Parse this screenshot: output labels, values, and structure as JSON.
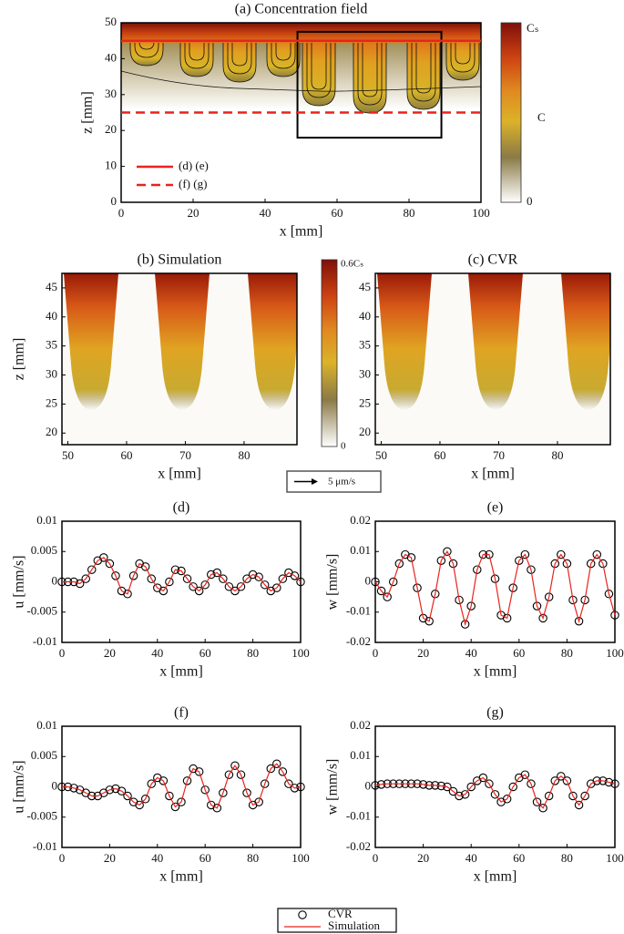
{
  "chart_data": [
    {
      "type": "contour",
      "title": "(a) Concentration field",
      "xlabel": "x [mm]",
      "ylabel": "z [mm]",
      "xlim": [
        0,
        100
      ],
      "ylim": [
        0,
        50
      ],
      "xticks": [
        0,
        20,
        40,
        60,
        80,
        100
      ],
      "yticks": [
        0,
        10,
        20,
        30,
        40,
        50
      ],
      "colorbar_labels": [
        "Cₛ",
        "C",
        "0"
      ],
      "lines": [
        {
          "label": "(d) (e)",
          "y": 45,
          "color": "#e8231d",
          "style": "solid"
        },
        {
          "label": "(f) (g)",
          "y": 25,
          "color": "#e8231d",
          "style": "dashed"
        }
      ]
    },
    {
      "type": "field",
      "title": "(b) Simulation",
      "xlabel": "x [mm]",
      "ylabel": "z [mm]",
      "xlim": [
        49,
        89
      ],
      "ylim": [
        18,
        47.5
      ],
      "xticks": [
        50,
        60,
        70,
        80
      ],
      "yticks": [
        20,
        25,
        30,
        35,
        40,
        45
      ],
      "colorbar_labels": [
        "0.6Cₛ",
        "0"
      ],
      "arrow_scale_label": "5 μm/s"
    },
    {
      "type": "field",
      "title": "(c) CVR",
      "xlabel": "x [mm]",
      "xlim": [
        49,
        89
      ],
      "ylim": [
        18,
        47.5
      ],
      "xticks": [
        50,
        60,
        70,
        80
      ],
      "yticks": [
        20,
        25,
        30,
        35,
        40,
        45
      ]
    },
    {
      "type": "profile",
      "title": "(d)",
      "xlabel": "x [mm]",
      "ylabel": "u [mm/s]",
      "xlim": [
        0,
        100
      ],
      "ylim": [
        -0.01,
        0.01
      ],
      "xticks": [
        0,
        20,
        40,
        60,
        80,
        100
      ],
      "yticks": [
        -0.01,
        -0.005,
        0,
        0.005,
        0.01
      ],
      "x": [
        0,
        2.5,
        5,
        7.5,
        10,
        12.5,
        15,
        17.5,
        20,
        22.5,
        25,
        27.5,
        30,
        32.5,
        35,
        37.5,
        40,
        42.5,
        45,
        47.5,
        50,
        52.5,
        55,
        57.5,
        60,
        62.5,
        65,
        67.5,
        70,
        72.5,
        75,
        77.5,
        80,
        82.5,
        85,
        87.5,
        90,
        92.5,
        95,
        97.5,
        100
      ],
      "series": [
        {
          "style": "markers",
          "color": "#000000",
          "values": [
            0,
            0,
            0,
            -0.0003,
            0.0005,
            0.002,
            0.0035,
            0.004,
            0.003,
            0.001,
            -0.0015,
            -0.002,
            0.001,
            0.003,
            0.0025,
            0.0005,
            -0.001,
            -0.0015,
            0,
            0.002,
            0.0018,
            0.0005,
            -0.0008,
            -0.0015,
            -0.0005,
            0.0012,
            0.0015,
            0.0005,
            -0.0008,
            -0.0015,
            -0.0008,
            0.0005,
            0.0012,
            0.0008,
            -0.0005,
            -0.0015,
            -0.001,
            0.0005,
            0.0015,
            0.001,
            0
          ]
        },
        {
          "style": "line",
          "color": "#e8231d",
          "values": [
            0,
            0,
            0,
            -0.0003,
            0.0005,
            0.002,
            0.0035,
            0.004,
            0.003,
            0.001,
            -0.0015,
            -0.002,
            0.001,
            0.003,
            0.0025,
            0.0005,
            -0.001,
            -0.0015,
            0,
            0.002,
            0.0018,
            0.0005,
            -0.0008,
            -0.0015,
            -0.0005,
            0.0012,
            0.0015,
            0.0005,
            -0.0008,
            -0.0015,
            -0.0008,
            0.0005,
            0.0012,
            0.0008,
            -0.0005,
            -0.0015,
            -0.001,
            0.0005,
            0.0015,
            0.001,
            0
          ]
        }
      ]
    },
    {
      "type": "profile",
      "title": "(e)",
      "xlabel": "x [mm]",
      "ylabel": "w [mm/s]",
      "xlim": [
        0,
        100
      ],
      "ylim": [
        -0.02,
        0.02
      ],
      "xticks": [
        0,
        20,
        40,
        60,
        80,
        100
      ],
      "yticks": [
        -0.02,
        -0.01,
        0,
        0.01,
        0.02
      ],
      "x": [
        0,
        2.5,
        5,
        7.5,
        10,
        12.5,
        15,
        17.5,
        20,
        22.5,
        25,
        27.5,
        30,
        32.5,
        35,
        37.5,
        40,
        42.5,
        45,
        47.5,
        50,
        52.5,
        55,
        57.5,
        60,
        62.5,
        65,
        67.5,
        70,
        72.5,
        75,
        77.5,
        80,
        82.5,
        85,
        87.5,
        90,
        92.5,
        95,
        97.5,
        100
      ],
      "series": [
        {
          "style": "markers",
          "color": "#000000",
          "values": [
            0,
            -0.003,
            -0.005,
            0,
            0.006,
            0.009,
            0.008,
            -0.002,
            -0.012,
            -0.013,
            -0.004,
            0.007,
            0.01,
            0.006,
            -0.006,
            -0.014,
            -0.008,
            0.004,
            0.009,
            0.009,
            0.001,
            -0.011,
            -0.012,
            -0.002,
            0.007,
            0.009,
            0.004,
            -0.008,
            -0.012,
            -0.005,
            0.006,
            0.009,
            0.006,
            -0.006,
            -0.013,
            -0.006,
            0.006,
            0.009,
            0.006,
            -0.004,
            -0.011
          ]
        },
        {
          "style": "line",
          "color": "#e8231d",
          "values": [
            0,
            -0.003,
            -0.005,
            0,
            0.006,
            0.009,
            0.008,
            -0.002,
            -0.012,
            -0.013,
            -0.004,
            0.007,
            0.01,
            0.006,
            -0.006,
            -0.014,
            -0.008,
            0.004,
            0.009,
            0.009,
            0.001,
            -0.011,
            -0.012,
            -0.002,
            0.007,
            0.009,
            0.004,
            -0.008,
            -0.012,
            -0.005,
            0.006,
            0.009,
            0.006,
            -0.006,
            -0.013,
            -0.006,
            0.006,
            0.009,
            0.006,
            -0.004,
            -0.011
          ]
        }
      ]
    },
    {
      "type": "profile",
      "title": "(f)",
      "xlabel": "x [mm]",
      "ylabel": "u [mm/s]",
      "xlim": [
        0,
        100
      ],
      "ylim": [
        -0.01,
        0.01
      ],
      "xticks": [
        0,
        20,
        40,
        60,
        80,
        100
      ],
      "yticks": [
        -0.01,
        -0.005,
        0,
        0.005,
        0.01
      ],
      "x": [
        0,
        2.5,
        5,
        7.5,
        10,
        12.5,
        15,
        17.5,
        20,
        22.5,
        25,
        27.5,
        30,
        32.5,
        35,
        37.5,
        40,
        42.5,
        45,
        47.5,
        50,
        52.5,
        55,
        57.5,
        60,
        62.5,
        65,
        67.5,
        70,
        72.5,
        75,
        77.5,
        80,
        82.5,
        85,
        87.5,
        90,
        92.5,
        95,
        97.5,
        100
      ],
      "series": [
        {
          "style": "markers",
          "color": "#000000",
          "values": [
            0,
            0,
            -0.0002,
            -0.0005,
            -0.001,
            -0.0015,
            -0.0015,
            -0.001,
            -0.0005,
            -0.0003,
            -0.0007,
            -0.0015,
            -0.0025,
            -0.003,
            -0.002,
            0.0005,
            0.0015,
            0.001,
            -0.0015,
            -0.0033,
            -0.0025,
            0.001,
            0.003,
            0.0025,
            -0.0005,
            -0.003,
            -0.0035,
            -0.001,
            0.002,
            0.0035,
            0.002,
            -0.001,
            -0.003,
            -0.0025,
            0.0005,
            0.003,
            0.0038,
            0.0025,
            0.0005,
            -0.0002,
            0
          ]
        },
        {
          "style": "line",
          "color": "#e8231d",
          "values": [
            0,
            0,
            -0.0002,
            -0.0005,
            -0.001,
            -0.0015,
            -0.0015,
            -0.001,
            -0.0005,
            -0.0003,
            -0.0007,
            -0.0015,
            -0.0025,
            -0.003,
            -0.002,
            0.0005,
            0.0015,
            0.001,
            -0.0015,
            -0.0033,
            -0.0025,
            0.001,
            0.003,
            0.0025,
            -0.0005,
            -0.003,
            -0.0035,
            -0.001,
            0.002,
            0.0035,
            0.002,
            -0.001,
            -0.003,
            -0.0025,
            0.0005,
            0.003,
            0.0038,
            0.0025,
            0.0005,
            -0.0002,
            0
          ]
        }
      ]
    },
    {
      "type": "profile",
      "title": "(g)",
      "xlabel": "x [mm]",
      "ylabel": "w [mm/s]",
      "xlim": [
        0,
        100
      ],
      "ylim": [
        -0.02,
        0.02
      ],
      "xticks": [
        0,
        20,
        40,
        60,
        80,
        100
      ],
      "yticks": [
        -0.02,
        -0.01,
        0,
        0.01,
        0.02
      ],
      "x": [
        0,
        2.5,
        5,
        7.5,
        10,
        12.5,
        15,
        17.5,
        20,
        22.5,
        25,
        27.5,
        30,
        32.5,
        35,
        37.5,
        40,
        42.5,
        45,
        47.5,
        50,
        52.5,
        55,
        57.5,
        60,
        62.5,
        65,
        67.5,
        70,
        72.5,
        75,
        77.5,
        80,
        82.5,
        85,
        87.5,
        90,
        92.5,
        95,
        97.5,
        100
      ],
      "series": [
        {
          "style": "markers",
          "color": "#000000",
          "values": [
            0.0005,
            0.0008,
            0.001,
            0.001,
            0.001,
            0.001,
            0.001,
            0.001,
            0.0008,
            0.0005,
            0.0005,
            0.0003,
            0,
            -0.0015,
            -0.003,
            -0.0025,
            0,
            0.002,
            0.003,
            0.001,
            -0.0025,
            -0.005,
            -0.004,
            0,
            0.003,
            0.004,
            0.001,
            -0.005,
            -0.007,
            -0.003,
            0.002,
            0.0035,
            0.002,
            -0.003,
            -0.006,
            -0.003,
            0.001,
            0.002,
            0.002,
            0.0015,
            0.001
          ]
        },
        {
          "style": "line",
          "color": "#e8231d",
          "values": [
            0.0005,
            0.0008,
            0.001,
            0.001,
            0.001,
            0.001,
            0.001,
            0.001,
            0.0008,
            0.0005,
            0.0005,
            0.0003,
            0,
            -0.0015,
            -0.003,
            -0.0025,
            0,
            0.002,
            0.003,
            0.001,
            -0.0025,
            -0.005,
            -0.004,
            0,
            0.003,
            0.004,
            0.001,
            -0.005,
            -0.007,
            -0.003,
            0.002,
            0.0035,
            0.002,
            -0.003,
            -0.006,
            -0.003,
            0.001,
            0.002,
            0.002,
            0.0015,
            0.001
          ]
        }
      ]
    }
  ],
  "legend": [
    {
      "label": "CVR",
      "marker": "circle",
      "color": "#000000"
    },
    {
      "label": "Simulation",
      "marker": "line",
      "color": "#e8231d"
    }
  ]
}
